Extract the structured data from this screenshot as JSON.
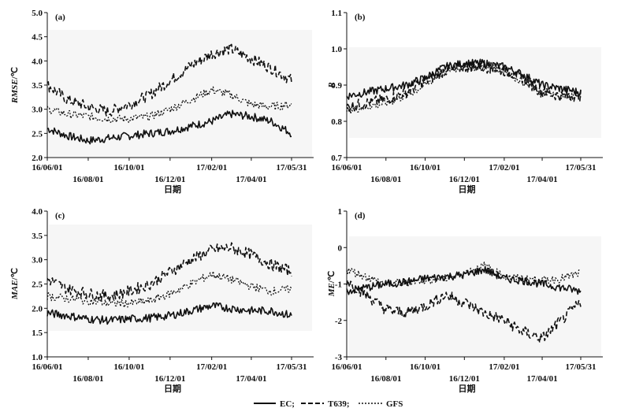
{
  "legend": {
    "items": [
      {
        "label": "EC;",
        "style": "solid"
      },
      {
        "label": "T639;",
        "style": "dashed"
      },
      {
        "label": "GFS",
        "style": "dotted"
      }
    ]
  },
  "chart_data": [
    {
      "type": "line",
      "panel_label": "(a)",
      "ylabel_var": "RMSE",
      "ylabel_unit": "/℃",
      "xlabel": "日期",
      "ylim": [
        2.0,
        5.0
      ],
      "yticks": [
        "2.0",
        "2.5",
        "3.0",
        "3.5",
        "4.0",
        "4.5",
        "5.0"
      ],
      "xticks_upper": [
        "16/06/01",
        "16/10/01",
        "17/02/01",
        "17/05/31"
      ],
      "xticks_lower": [
        "16/08/01",
        "16/12/01",
        "17/04/01"
      ],
      "x": [
        "2016-06-01",
        "2016-07-01",
        "2016-08-01",
        "2016-09-01",
        "2016-10-01",
        "2016-11-01",
        "2016-12-01",
        "2017-01-01",
        "2017-02-01",
        "2017-03-01",
        "2017-04-01",
        "2017-05-01",
        "2017-05-31"
      ],
      "series": [
        {
          "name": "EC",
          "style": "solid",
          "values": [
            2.6,
            2.45,
            2.35,
            2.4,
            2.45,
            2.5,
            2.55,
            2.65,
            2.75,
            2.9,
            2.85,
            2.75,
            2.5
          ]
        },
        {
          "name": "T639",
          "style": "dashed",
          "values": [
            3.5,
            3.2,
            3.05,
            2.95,
            3.1,
            3.3,
            3.6,
            3.9,
            4.15,
            4.25,
            4.05,
            3.85,
            3.6
          ]
        },
        {
          "name": "GFS",
          "style": "dotted",
          "values": [
            3.0,
            2.9,
            2.85,
            2.8,
            2.8,
            2.85,
            3.0,
            3.2,
            3.4,
            3.3,
            3.1,
            3.05,
            3.1
          ]
        }
      ]
    },
    {
      "type": "line",
      "panel_label": "(b)",
      "ylabel_var": "R",
      "ylabel_unit": "",
      "xlabel": "日期",
      "ylim": [
        0.7,
        1.1
      ],
      "yticks": [
        "0.7",
        "0.8",
        "0.9",
        "1.0",
        "1.1"
      ],
      "xticks_upper": [
        "16/06/01",
        "16/10/01",
        "17/02/01",
        "17/05/31"
      ],
      "xticks_lower": [
        "16/08/01",
        "16/12/01",
        "17/04/01"
      ],
      "x": [
        "2016-06-01",
        "2016-07-01",
        "2016-08-01",
        "2016-09-01",
        "2016-10-01",
        "2016-11-01",
        "2016-12-01",
        "2017-01-01",
        "2017-02-01",
        "2017-03-01",
        "2017-04-01",
        "2017-05-01",
        "2017-05-31"
      ],
      "series": [
        {
          "name": "EC",
          "style": "solid",
          "values": [
            0.87,
            0.88,
            0.89,
            0.9,
            0.92,
            0.95,
            0.96,
            0.96,
            0.95,
            0.93,
            0.9,
            0.89,
            0.88
          ]
        },
        {
          "name": "T639",
          "style": "dashed",
          "values": [
            0.84,
            0.85,
            0.86,
            0.88,
            0.91,
            0.94,
            0.95,
            0.95,
            0.94,
            0.92,
            0.88,
            0.87,
            0.87
          ]
        },
        {
          "name": "GFS",
          "style": "dotted",
          "values": [
            0.83,
            0.84,
            0.85,
            0.87,
            0.9,
            0.94,
            0.95,
            0.95,
            0.94,
            0.91,
            0.88,
            0.87,
            0.87
          ]
        }
      ]
    },
    {
      "type": "line",
      "panel_label": "(c)",
      "ylabel_var": "MAE",
      "ylabel_unit": "/℃",
      "xlabel": "日期",
      "ylim": [
        1.0,
        4.0
      ],
      "yticks": [
        "1.0",
        "1.5",
        "2.0",
        "2.5",
        "3.0",
        "3.5",
        "4.0"
      ],
      "xticks_upper": [
        "16/06/01",
        "16/10/01",
        "17/02/01",
        "17/05/31"
      ],
      "xticks_lower": [
        "16/08/01",
        "16/12/01",
        "17/04/01"
      ],
      "x": [
        "2016-06-01",
        "2016-07-01",
        "2016-08-01",
        "2016-09-01",
        "2016-10-01",
        "2016-11-01",
        "2016-12-01",
        "2017-01-01",
        "2017-02-01",
        "2017-03-01",
        "2017-04-01",
        "2017-05-01",
        "2017-05-31"
      ],
      "series": [
        {
          "name": "EC",
          "style": "solid",
          "values": [
            1.9,
            1.85,
            1.78,
            1.75,
            1.78,
            1.8,
            1.85,
            1.95,
            2.05,
            2.0,
            1.95,
            1.95,
            1.85
          ]
        },
        {
          "name": "T639",
          "style": "dashed",
          "values": [
            2.6,
            2.4,
            2.3,
            2.25,
            2.35,
            2.5,
            2.75,
            3.0,
            3.2,
            3.25,
            3.1,
            2.9,
            2.75
          ]
        },
        {
          "name": "GFS",
          "style": "dotted",
          "values": [
            2.25,
            2.2,
            2.15,
            2.1,
            2.1,
            2.15,
            2.3,
            2.5,
            2.7,
            2.6,
            2.45,
            2.35,
            2.4
          ]
        }
      ]
    },
    {
      "type": "line",
      "panel_label": "(d)",
      "ylabel_var": "ME",
      "ylabel_unit": "/℃",
      "xlabel": "日期",
      "ylim": [
        -3,
        1
      ],
      "yticks": [
        "-3",
        "-2",
        "-1",
        "0",
        "1"
      ],
      "xticks_upper": [
        "16/06/01",
        "16/10/01",
        "17/02/01",
        "17/05/31"
      ],
      "xticks_lower": [
        "16/08/01",
        "16/12/01",
        "17/04/01"
      ],
      "x": [
        "2016-06-01",
        "2016-07-01",
        "2016-08-01",
        "2016-09-01",
        "2016-10-01",
        "2016-11-01",
        "2016-12-01",
        "2017-01-01",
        "2017-02-01",
        "2017-03-01",
        "2017-04-01",
        "2017-05-01",
        "2017-05-31"
      ],
      "series": [
        {
          "name": "EC",
          "style": "solid",
          "values": [
            -1.2,
            -1.1,
            -1.0,
            -0.95,
            -0.85,
            -0.8,
            -0.75,
            -0.6,
            -0.85,
            -0.9,
            -1.0,
            -1.1,
            -1.2
          ]
        },
        {
          "name": "T639",
          "style": "dashed",
          "values": [
            -0.9,
            -1.3,
            -1.7,
            -1.8,
            -1.6,
            -1.3,
            -1.5,
            -1.8,
            -2.0,
            -2.3,
            -2.5,
            -2.0,
            -1.5
          ]
        },
        {
          "name": "GFS",
          "style": "dotted",
          "values": [
            -0.6,
            -0.8,
            -1.0,
            -0.95,
            -0.9,
            -0.85,
            -0.7,
            -0.5,
            -0.8,
            -0.85,
            -0.9,
            -0.85,
            -0.7
          ]
        }
      ]
    }
  ]
}
